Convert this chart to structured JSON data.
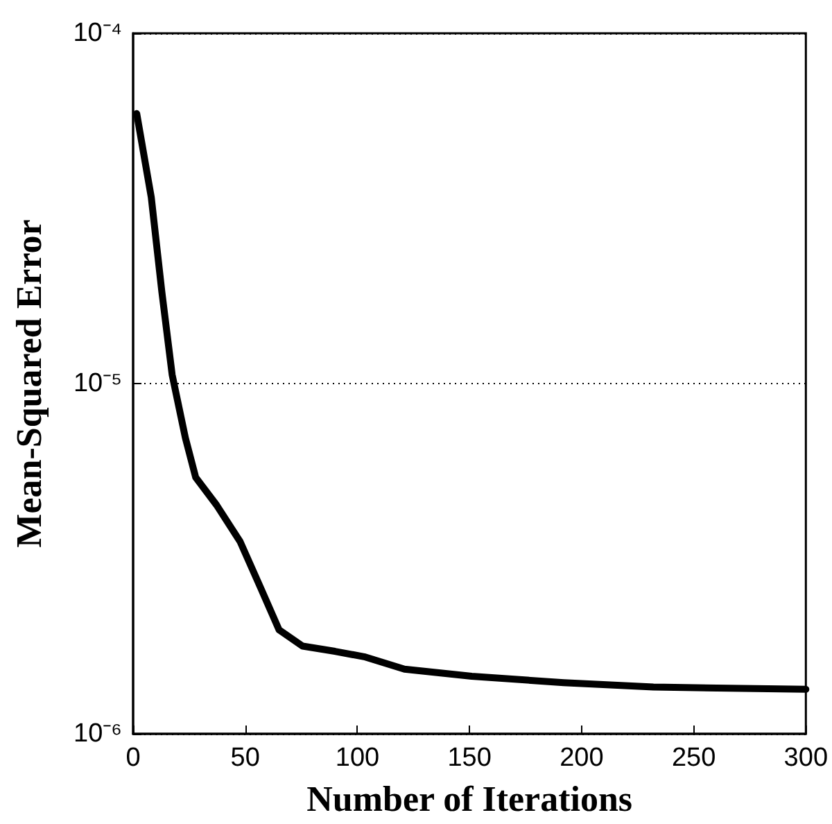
{
  "chart_data": {
    "type": "line",
    "xlabel": "Number of Iterations",
    "ylabel": "Mean-Squared Error",
    "x": [
      1.6,
      8.1,
      12.8,
      17.4,
      23.3,
      27.9,
      37.2,
      47.7,
      57,
      65.1,
      75.6,
      90,
      103,
      121,
      151,
      192,
      232,
      300
    ],
    "series": [
      {
        "color": "#000000",
        "values": [
          5.9e-05,
          3.4e-05,
          1.83e-05,
          1.06e-05,
          7e-06,
          5.4e-06,
          4.5e-06,
          3.54e-06,
          2.6e-06,
          1.98e-06,
          1.78e-06,
          1.72e-06,
          1.66e-06,
          1.53e-06,
          1.46e-06,
          1.4e-06,
          1.36e-06,
          1.34e-06
        ]
      }
    ],
    "log": "y",
    "xlim": [
      0,
      300
    ],
    "xticks": [
      0,
      50,
      100,
      150,
      200,
      250,
      300
    ],
    "ylim": [
      1e-06,
      0.0001
    ],
    "yticks": [
      {
        "value": 1e-06,
        "label": "10⁻⁶"
      },
      {
        "value": 1e-05,
        "label": "10⁻⁵"
      },
      {
        "value": 0.0001,
        "label": "10⁻⁴"
      }
    ],
    "grid": "y",
    "marker": "none",
    "line_style": "solid"
  }
}
